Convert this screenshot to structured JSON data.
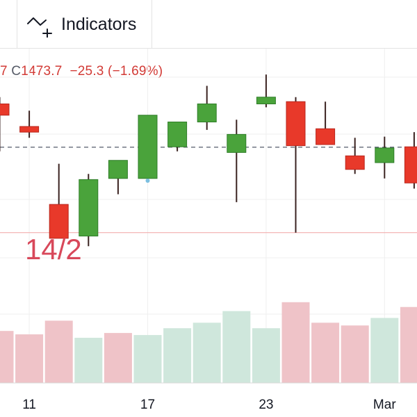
{
  "toolbar": {
    "indicators_label": "Indicators",
    "indicators_icon": "indicators-icon"
  },
  "legend": {
    "open_tail": "7",
    "close_key": "C",
    "close_value": "1473.7",
    "change": "−25.3",
    "change_pct": "(−1.69%)"
  },
  "date_overlay": "14/2",
  "colors": {
    "up": "#4aa33b",
    "down": "#e8392a",
    "up_volume": "#cfe7dc",
    "down_volume": "#efc3c8",
    "text_down": "#d23a35",
    "grid": "#efefef",
    "wick": "#3a2220"
  },
  "chart_data": {
    "type": "candlestick",
    "x_ticks": [
      {
        "label": "11",
        "index": 1
      },
      {
        "label": "17",
        "index": 5
      },
      {
        "label": "23",
        "index": 9
      },
      {
        "label": "Mar",
        "index": 13
      }
    ],
    "candles": [
      {
        "open": 1512,
        "high": 1518,
        "low": 1470,
        "close": 1502
      },
      {
        "open": 1492,
        "high": 1506,
        "low": 1482,
        "close": 1487
      },
      {
        "open": 1423,
        "high": 1459,
        "low": 1393,
        "close": 1393
      },
      {
        "open": 1395,
        "high": 1450,
        "low": 1386,
        "close": 1445
      },
      {
        "open": 1446,
        "high": 1462,
        "low": 1432,
        "close": 1462
      },
      {
        "open": 1446,
        "high": 1502,
        "low": 1446,
        "close": 1502
      },
      {
        "open": 1474,
        "high": 1496,
        "low": 1470,
        "close": 1496
      },
      {
        "open": 1496,
        "high": 1528,
        "low": 1489,
        "close": 1512
      },
      {
        "open": 1469,
        "high": 1498,
        "low": 1425,
        "close": 1485
      },
      {
        "open": 1512,
        "high": 1538,
        "low": 1509,
        "close": 1518
      },
      {
        "open": 1514,
        "high": 1518,
        "low": 1398,
        "close": 1475
      },
      {
        "open": 1490,
        "high": 1514,
        "low": 1476,
        "close": 1476
      },
      {
        "open": 1466,
        "high": 1482,
        "low": 1450,
        "close": 1454
      },
      {
        "open": 1460,
        "high": 1483,
        "low": 1446,
        "close": 1473
      },
      {
        "open": 1474,
        "high": 1487,
        "low": 1437,
        "close": 1442
      }
    ],
    "volumes": [
      {
        "value": 76,
        "dir": "down"
      },
      {
        "value": 71,
        "dir": "down"
      },
      {
        "value": 91,
        "dir": "down"
      },
      {
        "value": 66,
        "dir": "up"
      },
      {
        "value": 73,
        "dir": "down"
      },
      {
        "value": 70,
        "dir": "up"
      },
      {
        "value": 80,
        "dir": "up"
      },
      {
        "value": 88,
        "dir": "up"
      },
      {
        "value": 105,
        "dir": "up"
      },
      {
        "value": 80,
        "dir": "up"
      },
      {
        "value": 118,
        "dir": "down"
      },
      {
        "value": 88,
        "dir": "down"
      },
      {
        "value": 84,
        "dir": "down"
      },
      {
        "value": 95,
        "dir": "up"
      },
      {
        "value": 111,
        "dir": "down"
      }
    ],
    "last_price_line": 1473.7,
    "low_line": 1398,
    "marker": {
      "index": 5,
      "value": 1444
    }
  }
}
